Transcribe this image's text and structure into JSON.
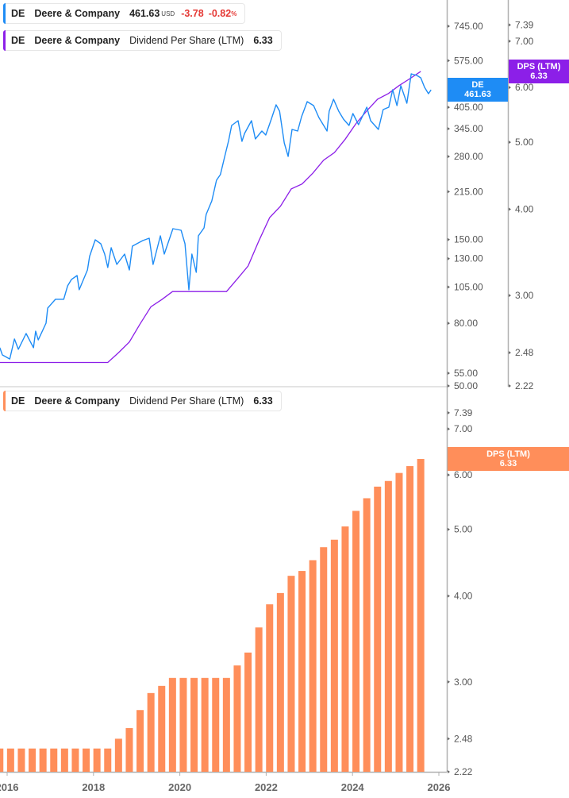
{
  "colors": {
    "price": "#1e8cf5",
    "dps_line": "#8c1fe8",
    "dps_bars": "#ff8e5a",
    "axis": "#b0b0b0",
    "text": "#555555"
  },
  "legend_price": {
    "ticker": "DE",
    "company": "Deere & Company",
    "price": "461.63",
    "currency": "USD",
    "change": "-3.78",
    "change_pct": "-0.82",
    "pct_sign": "%"
  },
  "legend_dps_top": {
    "ticker": "DE",
    "company": "Deere & Company",
    "metric": "Dividend Per Share (LTM)",
    "value": "6.33"
  },
  "legend_dps_bottom": {
    "ticker": "DE",
    "company": "Deere & Company",
    "metric": "Dividend Per Share (LTM)",
    "value": "6.33"
  },
  "tags": {
    "price_ticker": "DE",
    "price_value": "461.63",
    "dps_top_label": "DPS (LTM)",
    "dps_top_value": "6.33",
    "dps_bottom_label": "DPS (LTM)",
    "dps_bottom_value": "6.33"
  },
  "chart_data": [
    {
      "type": "line",
      "panel": "top",
      "scale": "log",
      "xlim": [
        2015.83,
        2026.2
      ],
      "price_axis": {
        "side": "right-inner",
        "ylim": [
          50,
          850
        ],
        "ticks": [
          "745.00",
          "575.00",
          "405.00",
          "345.00",
          "280.00",
          "215.00",
          "150.00",
          "130.00",
          "105.00",
          "80.00",
          "55.00",
          "50.00"
        ]
      },
      "dps_axis": {
        "side": "right-outer",
        "ylim": [
          2.22,
          7.7
        ],
        "ticks": [
          "7.39",
          "7.00",
          "6.00",
          "5.00",
          "4.00",
          "3.00",
          "2.48",
          "2.22"
        ]
      },
      "series": [
        {
          "name": "DE",
          "axis": "price",
          "x": [
            2015.83,
            2015.89,
            2016.06,
            2016.17,
            2016.26,
            2016.44,
            2016.61,
            2016.66,
            2016.72,
            2016.9,
            2016.94,
            2017.12,
            2017.31,
            2017.4,
            2017.49,
            2017.62,
            2017.67,
            2017.86,
            2017.91,
            2018.04,
            2018.17,
            2018.26,
            2018.33,
            2018.41,
            2018.54,
            2018.72,
            2018.83,
            2018.9,
            2019.14,
            2019.29,
            2019.38,
            2019.55,
            2019.64,
            2019.84,
            2020.03,
            2020.12,
            2020.21,
            2020.28,
            2020.38,
            2020.43,
            2020.56,
            2020.61,
            2020.74,
            2020.85,
            2020.94,
            2021.04,
            2021.13,
            2021.2,
            2021.35,
            2021.44,
            2021.5,
            2021.66,
            2021.75,
            2021.9,
            2021.99,
            2022.12,
            2022.23,
            2022.31,
            2022.42,
            2022.51,
            2022.6,
            2022.73,
            2022.82,
            2022.95,
            2023.1,
            2023.22,
            2023.41,
            2023.46,
            2023.56,
            2023.68,
            2023.79,
            2023.92,
            2024.01,
            2024.14,
            2024.33,
            2024.42,
            2024.6,
            2024.71,
            2024.84,
            2024.93,
            2025.03,
            2025.12,
            2025.26,
            2025.36,
            2025.49,
            2025.58,
            2025.67,
            2025.76,
            2025.82
          ],
          "y": [
            66.6,
            63.1,
            61.2,
            71.1,
            65.8,
            74.1,
            66.6,
            75.4,
            70.6,
            80.1,
            89.7,
            95.8,
            95.8,
            106.0,
            111.2,
            114.5,
            102.9,
            119.4,
            132.2,
            149.8,
            145.4,
            134.5,
            121.6,
            141.1,
            124.5,
            134.5,
            119.4,
            142.8,
            148.9,
            151.6,
            124.5,
            154.3,
            134.5,
            162.8,
            160.9,
            145.4,
            102.9,
            134.5,
            117.3,
            154.3,
            163.8,
            181.3,
            200.6,
            234.2,
            244.3,
            280.2,
            315.6,
            353.4,
            366.4,
            313.7,
            333.0,
            366.4,
            319.4,
            339.0,
            329.1,
            370.8,
            412.8,
            393.5,
            310.0,
            280.2,
            343.1,
            339.0,
            377.5,
            422.7,
            410.3,
            375.2,
            339.0,
            393.5,
            430.4,
            393.5,
            370.8,
            353.4,
            386.5,
            355.6,
            405.5,
            366.4,
            343.1,
            398.3,
            405.5,
            462.3,
            410.3,
            476.4,
            417.7,
            520.8,
            514.6,
            505.5,
            470.6,
            448.7,
            461.63
          ]
        },
        {
          "name": "DPS (LTM)",
          "axis": "dps",
          "source": "dps_bars"
        }
      ]
    },
    {
      "type": "bar",
      "panel": "bottom",
      "scale": "log",
      "xlim": [
        2015.83,
        2026.2
      ],
      "ylim": [
        2.22,
        7.7
      ],
      "yticks": [
        "7.39",
        "7.00",
        "6.00",
        "5.00",
        "4.00",
        "3.00",
        "2.48",
        "2.22"
      ],
      "xticks": [
        "2016",
        "2018",
        "2020",
        "2022",
        "2024",
        "2026"
      ],
      "x": [
        2015.83,
        2016.08,
        2016.33,
        2016.58,
        2016.83,
        2017.08,
        2017.33,
        2017.58,
        2017.83,
        2018.08,
        2018.33,
        2018.58,
        2018.83,
        2019.08,
        2019.33,
        2019.58,
        2019.83,
        2020.08,
        2020.33,
        2020.58,
        2020.83,
        2021.08,
        2021.33,
        2021.58,
        2021.83,
        2022.08,
        2022.33,
        2022.58,
        2022.83,
        2023.08,
        2023.33,
        2023.58,
        2023.83,
        2024.08,
        2024.33,
        2024.58,
        2024.83,
        2025.08,
        2025.33,
        2025.58
      ],
      "values": [
        2.4,
        2.4,
        2.4,
        2.4,
        2.4,
        2.4,
        2.4,
        2.4,
        2.4,
        2.4,
        2.4,
        2.48,
        2.57,
        2.73,
        2.89,
        2.96,
        3.04,
        3.04,
        3.04,
        3.04,
        3.04,
        3.04,
        3.17,
        3.31,
        3.6,
        3.89,
        4.04,
        4.28,
        4.35,
        4.51,
        4.71,
        4.83,
        5.05,
        5.32,
        5.55,
        5.77,
        5.88,
        6.04,
        6.18,
        6.33
      ]
    }
  ]
}
